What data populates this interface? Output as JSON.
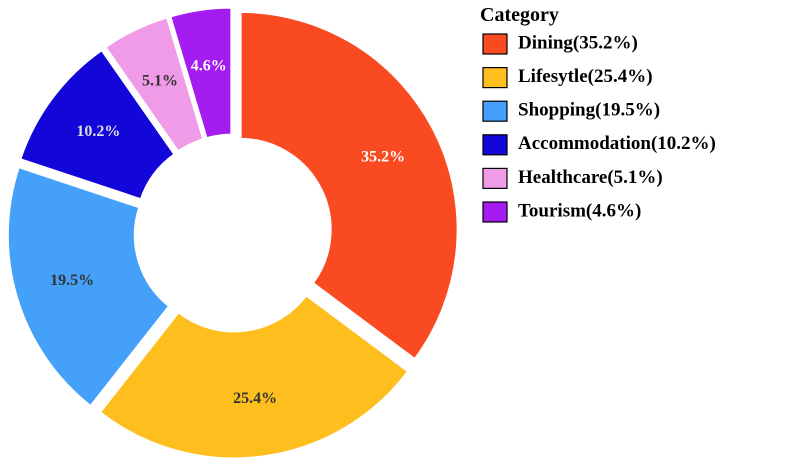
{
  "chart_data": {
    "type": "pie",
    "variant": "donut",
    "categories": [
      "Dining",
      "Lifesytle",
      "Shopping",
      "Accommodation",
      "Healthcare",
      "Tourism"
    ],
    "values": [
      35.2,
      25.4,
      19.5,
      10.2,
      5.1,
      4.6
    ],
    "slice_labels": [
      "35.2%",
      "25.4%",
      "19.5%",
      "10.2%",
      "5.1%",
      "4.6%"
    ],
    "legend_labels": [
      "Dining(35.2%)",
      "Lifesytle(25.4%)",
      "Shopping(19.5%)",
      "Accommodation(10.2%)",
      "Healthcare(5.1%)",
      "Tourism(4.6%)"
    ],
    "colors": [
      "#fa4a22",
      "#febe1e",
      "#44a0f8",
      "#1207d8",
      "#f09be8",
      "#a41cef"
    ],
    "label_colors": [
      "#ffffff",
      "#333333",
      "#333333",
      "#dddddd",
      "#333333",
      "#ffffff"
    ],
    "legend_title": "Category",
    "legend_position": "top-right",
    "start_angle": "top, clockwise",
    "exploded": true
  }
}
